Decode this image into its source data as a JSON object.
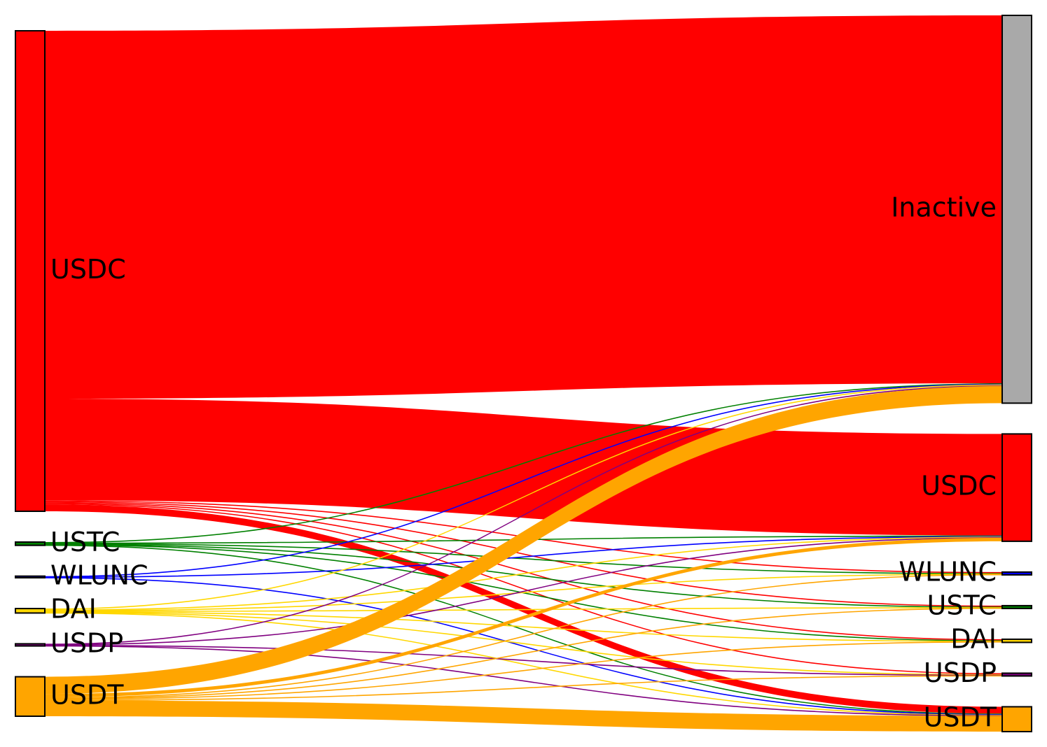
{
  "chart_data": {
    "type": "sankey",
    "left_nodes": [
      {
        "name": "USDC",
        "color": "#ff0000"
      },
      {
        "name": "USTC",
        "color": "#008000"
      },
      {
        "name": "WLUNC",
        "color": "#0000ff"
      },
      {
        "name": "DAI",
        "color": "#ffd700"
      },
      {
        "name": "USDP",
        "color": "#800080"
      },
      {
        "name": "USDT",
        "color": "#ffa500"
      }
    ],
    "right_nodes": [
      {
        "name": "Inactive",
        "color": "#a9a9a9"
      },
      {
        "name": "USDC",
        "color": "#ff0000"
      },
      {
        "name": "WLUNC",
        "color": "#0000ff"
      },
      {
        "name": "USTC",
        "color": "#008000"
      },
      {
        "name": "DAI",
        "color": "#ffd700"
      },
      {
        "name": "USDP",
        "color": "#800080"
      },
      {
        "name": "USDT",
        "color": "#ffa500"
      }
    ],
    "links": [
      {
        "source": 0,
        "target": 0,
        "value": 536
      },
      {
        "source": 0,
        "target": 1,
        "value": 148
      },
      {
        "source": 0,
        "target": 2,
        "value": 1.5
      },
      {
        "source": 0,
        "target": 3,
        "value": 1.5
      },
      {
        "source": 0,
        "target": 4,
        "value": 1.5
      },
      {
        "source": 0,
        "target": 5,
        "value": 1.5
      },
      {
        "source": 0,
        "target": 6,
        "value": 10
      },
      {
        "source": 1,
        "target": 0,
        "value": 0.8
      },
      {
        "source": 1,
        "target": 1,
        "value": 0.8
      },
      {
        "source": 1,
        "target": 2,
        "value": 0.8
      },
      {
        "source": 1,
        "target": 3,
        "value": 0.8
      },
      {
        "source": 1,
        "target": 4,
        "value": 0.8
      },
      {
        "source": 1,
        "target": 6,
        "value": 0.8
      },
      {
        "source": 2,
        "target": 0,
        "value": 0.8
      },
      {
        "source": 2,
        "target": 1,
        "value": 0.8
      },
      {
        "source": 2,
        "target": 6,
        "value": 0.8
      },
      {
        "source": 3,
        "target": 0,
        "value": 1.5
      },
      {
        "source": 3,
        "target": 1,
        "value": 1
      },
      {
        "source": 3,
        "target": 2,
        "value": 0.8
      },
      {
        "source": 3,
        "target": 3,
        "value": 0.8
      },
      {
        "source": 3,
        "target": 4,
        "value": 0.8
      },
      {
        "source": 3,
        "target": 5,
        "value": 0.8
      },
      {
        "source": 3,
        "target": 6,
        "value": 0.8
      },
      {
        "source": 4,
        "target": 0,
        "value": 0.8
      },
      {
        "source": 4,
        "target": 1,
        "value": 0.8
      },
      {
        "source": 4,
        "target": 5,
        "value": 0.8
      },
      {
        "source": 4,
        "target": 6,
        "value": 0.8
      },
      {
        "source": 5,
        "target": 0,
        "value": 25
      },
      {
        "source": 5,
        "target": 1,
        "value": 5
      },
      {
        "source": 5,
        "target": 2,
        "value": 1
      },
      {
        "source": 5,
        "target": 3,
        "value": 1
      },
      {
        "source": 5,
        "target": 4,
        "value": 1.5
      },
      {
        "source": 5,
        "target": 5,
        "value": 1
      },
      {
        "source": 5,
        "target": 6,
        "value": 23
      }
    ]
  }
}
